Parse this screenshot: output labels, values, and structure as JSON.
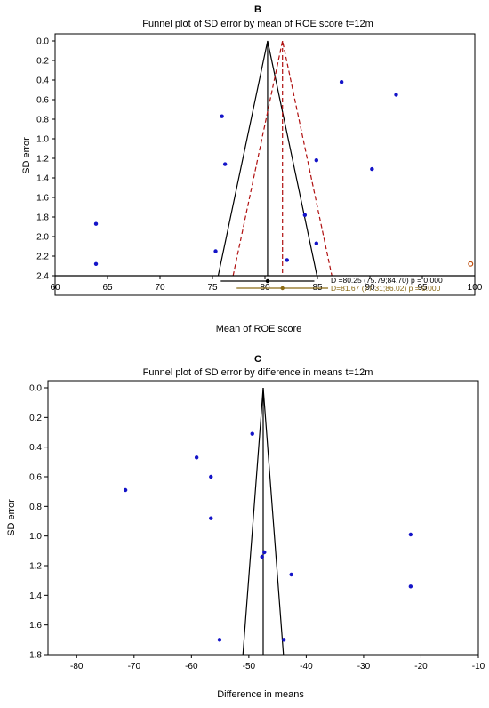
{
  "chart_data": [
    {
      "type": "scatter",
      "panel_letter": "B",
      "title": "Funnel plot of SD error by mean of ROE score t=12m",
      "xlabel": "Mean of ROE score",
      "ylabel": "SD error",
      "xlim": [
        60,
        100
      ],
      "ylim": [
        0,
        2.4
      ],
      "y_inverted": true,
      "xticks": [
        60,
        65,
        70,
        75,
        80,
        85,
        90,
        95,
        100
      ],
      "yticks": [
        0.0,
        0.2,
        0.4,
        0.6,
        0.8,
        1.0,
        1.2,
        1.4,
        1.6,
        1.8,
        2.0,
        2.2,
        2.4
      ],
      "points": [
        {
          "x": 87.3,
          "y": 0.42
        },
        {
          "x": 92.5,
          "y": 0.55
        },
        {
          "x": 75.9,
          "y": 0.77
        },
        {
          "x": 76.2,
          "y": 1.26
        },
        {
          "x": 84.9,
          "y": 1.22
        },
        {
          "x": 90.2,
          "y": 1.31
        },
        {
          "x": 83.8,
          "y": 1.78
        },
        {
          "x": 63.9,
          "y": 1.87
        },
        {
          "x": 84.9,
          "y": 2.07
        },
        {
          "x": 75.3,
          "y": 2.15
        },
        {
          "x": 82.1,
          "y": 2.24
        },
        {
          "x": 63.9,
          "y": 2.28
        }
      ],
      "imputed_points": [
        {
          "x": 99.6,
          "y": 2.28
        }
      ],
      "observed": {
        "estimate": 80.25,
        "ci": [
          75.79,
          84.7
        ],
        "label": "D =80.25 (75.79;84.70) p = 0.000"
      },
      "adjusted": {
        "estimate": 81.67,
        "ci": [
          77.31,
          86.02
        ],
        "label": "D=81.67 (77.31;86.02) p = 0.000"
      },
      "colors": {
        "points": "#1414c8",
        "funnel": "#000000",
        "adjusted_funnel": "#b01010",
        "adjusted_marker": "#8a6a14"
      }
    },
    {
      "type": "scatter",
      "panel_letter": "C",
      "title": "Funnel plot of SD error by  difference in means t=12m",
      "xlabel": "Difference in means",
      "ylabel": "SD error",
      "xlim": [
        -85,
        -10
      ],
      "ylim": [
        0,
        1.8
      ],
      "y_inverted": true,
      "xticks": [
        -80,
        -70,
        -60,
        -50,
        -40,
        -30,
        -20,
        -10
      ],
      "yticks": [
        0.0,
        0.2,
        0.4,
        0.6,
        0.8,
        1.0,
        1.2,
        1.4,
        1.6,
        1.8
      ],
      "points": [
        {
          "x": -49.4,
          "y": 0.31
        },
        {
          "x": -59.1,
          "y": 0.47
        },
        {
          "x": -56.6,
          "y": 0.6
        },
        {
          "x": -71.5,
          "y": 0.69
        },
        {
          "x": -56.6,
          "y": 0.88
        },
        {
          "x": -21.8,
          "y": 0.99
        },
        {
          "x": -47.3,
          "y": 1.11
        },
        {
          "x": -47.7,
          "y": 1.14
        },
        {
          "x": -42.6,
          "y": 1.26
        },
        {
          "x": -21.8,
          "y": 1.34
        },
        {
          "x": -55.1,
          "y": 1.7
        },
        {
          "x": -43.9,
          "y": 1.7
        }
      ],
      "center": -47.5,
      "colors": {
        "points": "#1414c8",
        "funnel": "#000000"
      }
    }
  ]
}
